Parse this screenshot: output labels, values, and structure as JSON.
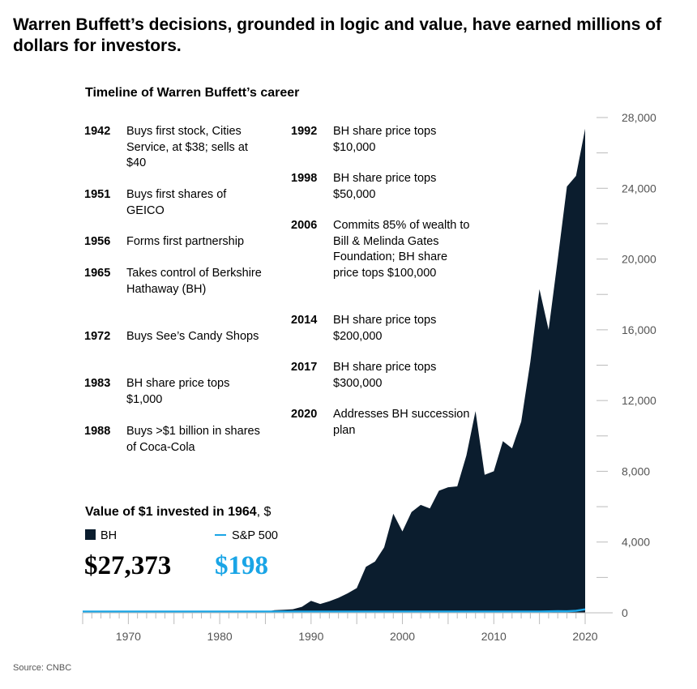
{
  "headline": "Warren Buffett’s decisions, grounded in logic and value, have earned millions of dollars for investors.",
  "timeline": {
    "title": "Timeline of Warren Buffett’s career",
    "col1": [
      {
        "year": "1942",
        "text": "Buys first stock, Cities Service, at $38; sells at $40"
      },
      {
        "year": "1951",
        "text": "Buys first shares of GEICO"
      },
      {
        "year": "1956",
        "text": "Forms first partnership"
      },
      {
        "year": "1965",
        "text": "Takes control of Berkshire Hathaway (BH)"
      },
      {
        "year": "1972",
        "text": "Buys See’s Candy Shops"
      },
      {
        "year": "1983",
        "text": "BH share price tops $1,000"
      },
      {
        "year": "1988",
        "text": "Buys >$1 billion in shares of Coca-Cola"
      }
    ],
    "col2": [
      {
        "year": "1992",
        "text": "BH share price tops $10,000"
      },
      {
        "year": "1998",
        "text": "BH share price tops $50,000"
      },
      {
        "year": "2006",
        "text": "Commits 85% of wealth to Bill & Melinda Gates Foundation; BH share price tops $100,000"
      },
      {
        "year": "2014",
        "text": "BH share price tops $200,000"
      },
      {
        "year": "2017",
        "text": "BH share price tops $300,000"
      },
      {
        "year": "2020",
        "text": "Addresses BH succession plan"
      }
    ]
  },
  "value_panel": {
    "title_bold": "Value of $1 invested in 1964",
    "title_unit": ", $",
    "legend_bh": "BH",
    "legend_sp": "S&P 500",
    "final_bh": "$27,373",
    "final_sp": "$198"
  },
  "source": "Source: CNBC",
  "colors": {
    "bh": "#0b1d2e",
    "sp": "#1aa5e6",
    "axis": "#999999"
  },
  "chart_data": {
    "type": "area",
    "xlim": [
      1965,
      2020
    ],
    "ylim": [
      0,
      28000
    ],
    "x_ticks": [
      1970,
      1980,
      1990,
      2000,
      2010,
      2020
    ],
    "y_ticks": [
      0,
      4000,
      8000,
      12000,
      16000,
      20000,
      24000,
      28000
    ],
    "y_tick_labels": [
      "0",
      "4,000",
      "8,000",
      "12,000",
      "16,000",
      "20,000",
      "24,000",
      "28,000"
    ],
    "x": [
      1965,
      1966,
      1967,
      1968,
      1969,
      1970,
      1971,
      1972,
      1973,
      1974,
      1975,
      1976,
      1977,
      1978,
      1979,
      1980,
      1981,
      1982,
      1983,
      1984,
      1985,
      1986,
      1987,
      1988,
      1989,
      1990,
      1991,
      1992,
      1993,
      1994,
      1995,
      1996,
      1997,
      1998,
      1999,
      2000,
      2001,
      2002,
      2003,
      2004,
      2005,
      2006,
      2007,
      2008,
      2009,
      2010,
      2011,
      2012,
      2013,
      2014,
      2015,
      2016,
      2017,
      2018,
      2019,
      2020
    ],
    "series": [
      {
        "name": "BH",
        "values": [
          1,
          1,
          1,
          2,
          2,
          3,
          3,
          4,
          4,
          3,
          3,
          5,
          6,
          7,
          10,
          10,
          12,
          15,
          25,
          40,
          50,
          150,
          170,
          200,
          340,
          680,
          500,
          650,
          850,
          1100,
          1400,
          2600,
          2900,
          3700,
          5600,
          4600,
          5700,
          6100,
          5900,
          6900,
          7100,
          7150,
          8900,
          11400,
          7800,
          8000,
          9700,
          9300,
          10800,
          14200,
          18300,
          16000,
          20000,
          24100,
          24700,
          27373
        ]
      },
      {
        "name": "S&P 500",
        "values": [
          1,
          1,
          1,
          1,
          1,
          1,
          1,
          1,
          1,
          1,
          1,
          2,
          2,
          2,
          2,
          3,
          3,
          3,
          4,
          4,
          5,
          6,
          7,
          7,
          9,
          9,
          11,
          12,
          13,
          13,
          17,
          21,
          27,
          34,
          41,
          37,
          33,
          26,
          33,
          36,
          38,
          43,
          46,
          29,
          36,
          41,
          42,
          48,
          62,
          69,
          70,
          77,
          92,
          89,
          114,
          198
        ]
      }
    ]
  }
}
